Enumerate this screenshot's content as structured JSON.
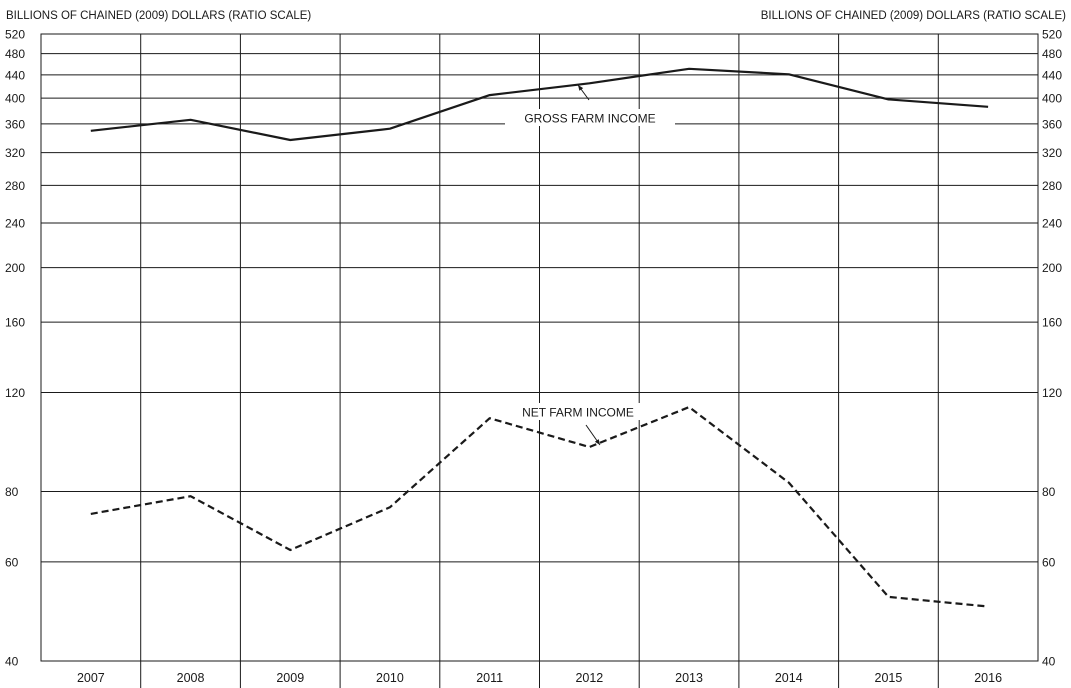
{
  "chart_data": {
    "type": "line",
    "y_unit_left": "BILLIONS OF CHAINED (2009) DOLLARS (RATIO SCALE)",
    "y_unit_right": "BILLIONS OF CHAINED (2009) DOLLARS (RATIO SCALE)",
    "y_scale": "log",
    "ylim": [
      40,
      520
    ],
    "y_ticks": [
      40,
      60,
      80,
      120,
      160,
      200,
      240,
      280,
      320,
      360,
      400,
      440,
      480,
      520
    ],
    "y_tick_labels": [
      "40",
      "60",
      "80",
      "120",
      "160",
      "200",
      "240",
      "280",
      "320",
      "360",
      "400",
      "440",
      "480",
      "520"
    ],
    "categories": [
      "2007",
      "2008",
      "2009",
      "2010",
      "2011",
      "2012",
      "2013",
      "2014",
      "2015",
      "2016"
    ],
    "grid": true,
    "legend": "none",
    "series": [
      {
        "name": "GROSS FARM INCOME",
        "style": "solid",
        "color": "#1a1a1a",
        "values": [
          350,
          366,
          337,
          353,
          405,
          425,
          451,
          441,
          398,
          386
        ]
      },
      {
        "name": "NET FARM INCOME",
        "style": "dashed",
        "color": "#1a1a1a",
        "values": [
          73,
          78.5,
          63,
          75,
          108,
          96,
          113,
          83,
          52,
          50
        ]
      }
    ],
    "annotations": [
      {
        "series": 0,
        "text": "GROSS FARM INCOME"
      },
      {
        "series": 1,
        "text": "NET FARM INCOME"
      }
    ]
  }
}
